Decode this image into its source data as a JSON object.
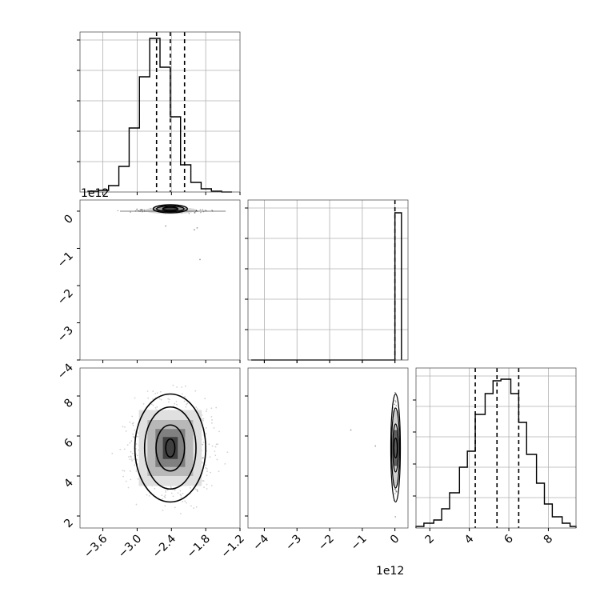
{
  "chart_data": [
    {
      "panel": "hist-param1",
      "type": "histogram",
      "xlim": [
        -4.0,
        -1.2
      ],
      "ylim": [
        0,
        1.0
      ],
      "bin_edges": [
        -3.86,
        -3.68,
        -3.5,
        -3.32,
        -3.14,
        -2.96,
        -2.78,
        -2.6,
        -2.42,
        -2.24,
        -2.06,
        -1.88,
        -1.7,
        -1.52,
        -1.34
      ],
      "counts": [
        0.005,
        0.01,
        0.04,
        0.16,
        0.4,
        0.72,
        0.96,
        0.78,
        0.47,
        0.17,
        0.06,
        0.02,
        0.005,
        0.0
      ],
      "quantiles": [
        -2.66,
        -2.42,
        -2.17
      ],
      "grid": true
    },
    {
      "panel": "scatter-param1-param2",
      "type": "scatter-density",
      "xlim": [
        -4.0,
        -1.2
      ],
      "ylim": [
        -4.0,
        0.3
      ],
      "y_offset_label": "1e12",
      "yticks": [
        0,
        -1,
        -2,
        -3,
        -4
      ],
      "center": [
        -2.42,
        0.02
      ],
      "contour_half_widths_x": [
        0.3,
        0.24,
        0.13
      ],
      "contour_half_widths_y": [
        0.1,
        0.07,
        0.04
      ],
      "outliers": [
        [
          -2.0,
          -0.5
        ],
        [
          -1.9,
          -1.3
        ],
        [
          -2.5,
          -0.4
        ],
        [
          -1.95,
          -0.45
        ]
      ]
    },
    {
      "panel": "hist-param2",
      "type": "histogram",
      "xlim": [
        -4.5,
        0.4
      ],
      "ylim": [
        0,
        1.0
      ],
      "bin_edges": [
        -4.4,
        0.0,
        0.2
      ],
      "counts": [
        0.0,
        0.92
      ],
      "quantiles": [
        0.0
      ],
      "grid": true
    },
    {
      "panel": "scatter-param1-param3",
      "type": "scatter-density",
      "xlim": [
        -4.0,
        -1.2
      ],
      "ylim": [
        1.4,
        9.4
      ],
      "xticks": [
        -3.6,
        -3.0,
        -2.4,
        -1.8,
        -1.2
      ],
      "xtick_labels": [
        "−3.6",
        "−3.0",
        "−2.4",
        "−1.8",
        "−1.2"
      ],
      "yticks": [
        2,
        4,
        6,
        8
      ],
      "center": [
        -2.42,
        5.4
      ],
      "contour_half_widths_x": [
        0.08,
        0.25,
        0.45,
        0.62
      ],
      "contour_half_widths_y": [
        0.45,
        1.15,
        2.05,
        2.7
      ]
    },
    {
      "panel": "scatter-param2-param3",
      "type": "scatter-density",
      "xlim": [
        -4.5,
        0.4
      ],
      "ylim": [
        1.4,
        9.4
      ],
      "xticks": [
        -4,
        -3,
        -2,
        -1,
        0
      ],
      "xtick_labels": [
        "−4",
        "−3",
        "−2",
        "−1",
        "0"
      ],
      "x_offset_label": "1e12",
      "center": [
        0.02,
        5.4
      ],
      "outliers": [
        [
          -1.35,
          6.3
        ],
        [
          -0.6,
          5.5
        ]
      ]
    },
    {
      "panel": "hist-param3",
      "type": "histogram",
      "xlim": [
        1.3,
        9.4
      ],
      "ylim": [
        0,
        1.0
      ],
      "xticks": [
        2,
        4,
        6,
        8
      ],
      "bin_edges": [
        1.3,
        1.7,
        2.2,
        2.6,
        3.0,
        3.5,
        3.9,
        4.3,
        4.8,
        5.2,
        5.6,
        6.1,
        6.5,
        6.9,
        7.4,
        7.8,
        8.2,
        8.7,
        9.1,
        9.4
      ],
      "counts": [
        0.01,
        0.03,
        0.05,
        0.12,
        0.22,
        0.38,
        0.48,
        0.71,
        0.84,
        0.92,
        0.93,
        0.84,
        0.66,
        0.46,
        0.28,
        0.15,
        0.07,
        0.03,
        0.01
      ],
      "quantiles": [
        4.3,
        5.4,
        6.5
      ],
      "grid": true
    }
  ],
  "labels": {
    "offset_1e12_y": "1e12",
    "offset_1e12_x": "1e12"
  }
}
